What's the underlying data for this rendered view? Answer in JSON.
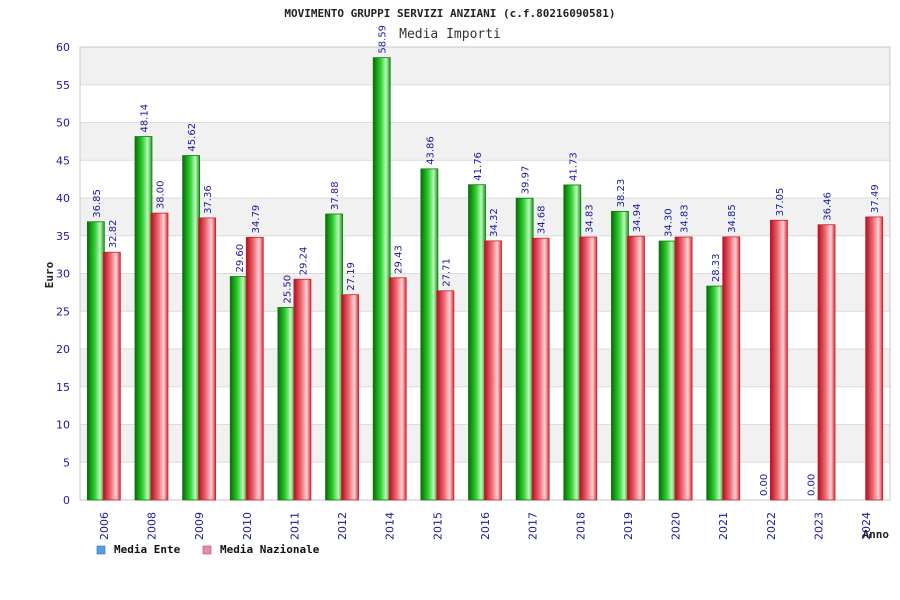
{
  "chart_data": {
    "type": "bar",
    "title": "MOVIMENTO GRUPPI SERVIZI ANZIANI (c.f.80216090581)",
    "subtitle": "Media Importi",
    "xlabel": "Anno",
    "ylabel": "Euro",
    "ylim": [
      0,
      60
    ],
    "yticks": [
      "0",
      "5",
      "10",
      "15",
      "20",
      "25",
      "30",
      "35",
      "40",
      "45",
      "50",
      "55",
      "60"
    ],
    "grid": true,
    "legend_position": "bottom-left",
    "categories": [
      "2006",
      "2008",
      "2009",
      "2010",
      "2011",
      "2012",
      "2014",
      "2015",
      "2016",
      "2017",
      "2018",
      "2019",
      "2020",
      "2021",
      "2022",
      "2023",
      "2024"
    ],
    "series": [
      {
        "name": "Media Ente",
        "color": "#1fa81f",
        "values": [
          36.85,
          48.14,
          45.62,
          29.6,
          25.5,
          37.88,
          58.59,
          43.86,
          41.76,
          39.97,
          41.73,
          38.23,
          34.3,
          28.33,
          0.0,
          0.0,
          null
        ],
        "labels": [
          "36.85",
          "48.14",
          "45.62",
          "29.60",
          "25.50",
          "37.88",
          "58.59",
          "43.86",
          "41.76",
          "39.97",
          "41.73",
          "38.23",
          "34.30",
          "28.33",
          "0.00",
          "0.00",
          ""
        ]
      },
      {
        "name": "Media Nazionale",
        "color": "#e8404f",
        "values": [
          32.82,
          38.0,
          37.36,
          34.79,
          29.24,
          27.19,
          29.43,
          27.71,
          34.32,
          34.68,
          34.83,
          34.94,
          34.83,
          34.85,
          37.05,
          36.46,
          37.49
        ],
        "labels": [
          "32.82",
          "38.00",
          "37.36",
          "34.79",
          "29.24",
          "27.19",
          "29.43",
          "27.71",
          "34.32",
          "34.68",
          "34.83",
          "34.94",
          "34.83",
          "34.85",
          "37.05",
          "36.46",
          "37.49"
        ]
      }
    ],
    "legend": [
      {
        "label": "Media Ente",
        "color": "#5b9be6"
      },
      {
        "label": "Media Nazionale",
        "color": "#e88aa8"
      }
    ]
  }
}
